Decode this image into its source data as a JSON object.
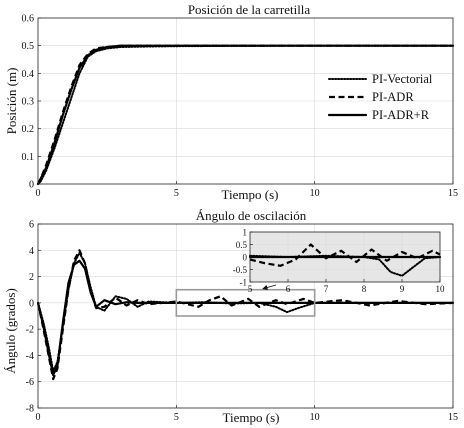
{
  "chart_data": [
    {
      "id": "top",
      "type": "line",
      "title": "Posición de la carretilla",
      "xlabel": "Tiempo (s)",
      "ylabel": "Posición (m)",
      "xlim": [
        0,
        15
      ],
      "ylim": [
        0,
        0.6
      ],
      "xticks": [
        0,
        5,
        10,
        15
      ],
      "yticks": [
        0,
        0.1,
        0.2,
        0.3,
        0.4,
        0.5,
        0.6
      ],
      "ytick_labels": [
        "0",
        "0.1",
        "0.2",
        "0.3",
        "0.4",
        "0.5",
        "0.6"
      ],
      "grid": true,
      "legend": {
        "placement": "right",
        "entries": [
          "PI-Vectorial",
          "PI-ADR",
          "PI-ADR+R"
        ]
      },
      "series": [
        {
          "name": "PI-Vectorial",
          "style": "dotted",
          "x": [
            0,
            0.1,
            0.3,
            0.6,
            0.9,
            1.2,
            1.5,
            1.8,
            2.1,
            2.5,
            3.0,
            4.0,
            5.0,
            7.0,
            10.0,
            15.0
          ],
          "y": [
            0,
            0.01,
            0.05,
            0.13,
            0.22,
            0.31,
            0.4,
            0.46,
            0.48,
            0.49,
            0.495,
            0.497,
            0.498,
            0.499,
            0.5,
            0.5
          ]
        },
        {
          "name": "PI-ADR",
          "style": "dashed",
          "x": [
            0,
            0.1,
            0.3,
            0.6,
            0.9,
            1.2,
            1.5,
            1.8,
            2.1,
            2.5,
            3.0,
            4.0,
            5.0,
            7.0,
            10.0,
            15.0
          ],
          "y": [
            0,
            0.02,
            0.07,
            0.16,
            0.26,
            0.35,
            0.43,
            0.47,
            0.49,
            0.495,
            0.5,
            0.5,
            0.5,
            0.5,
            0.5,
            0.5
          ]
        },
        {
          "name": "PI-ADR+R",
          "style": "solid",
          "x": [
            0,
            0.1,
            0.3,
            0.6,
            0.9,
            1.2,
            1.5,
            1.8,
            2.1,
            2.5,
            3.0,
            4.0,
            5.0,
            7.0,
            10.0,
            15.0
          ],
          "y": [
            0,
            0.02,
            0.06,
            0.15,
            0.25,
            0.34,
            0.42,
            0.465,
            0.485,
            0.495,
            0.5,
            0.5,
            0.5,
            0.5,
            0.5,
            0.5
          ]
        }
      ]
    },
    {
      "id": "bottom",
      "type": "line",
      "title": "Ángulo de oscilación",
      "xlabel": "Tiempo (s)",
      "ylabel": "Ángulo (grados)",
      "xlim": [
        0,
        15
      ],
      "ylim": [
        -8,
        6
      ],
      "xticks": [
        0,
        5,
        10,
        15
      ],
      "yticks": [
        -8,
        -6,
        -4,
        -2,
        0,
        2,
        4,
        6
      ],
      "grid": true,
      "series": [
        {
          "name": "PI-Vectorial",
          "style": "dotted",
          "x": [
            0,
            0.2,
            0.4,
            0.55,
            0.7,
            0.9,
            1.1,
            1.3,
            1.5,
            1.7,
            1.9,
            2.1,
            2.4,
            2.8,
            3.2,
            3.6,
            4.0,
            5.0,
            6.0,
            7.0,
            8.0,
            8.6,
            9.0,
            9.4,
            10.0,
            12.0,
            15.0
          ],
          "y": [
            0,
            -1.5,
            -3.5,
            -5.2,
            -4.5,
            -1.8,
            1.0,
            3.0,
            3.8,
            3.0,
            1.2,
            -0.3,
            -0.6,
            0.5,
            0.3,
            -0.3,
            0.1,
            0.0,
            0.05,
            -0.05,
            0.0,
            -0.3,
            -0.7,
            -0.4,
            0.0,
            0.0,
            0.0
          ]
        },
        {
          "name": "PI-ADR",
          "style": "dashed",
          "x": [
            0,
            0.2,
            0.4,
            0.55,
            0.7,
            0.9,
            1.1,
            1.3,
            1.5,
            1.7,
            1.9,
            2.1,
            2.4,
            2.8,
            3.2,
            3.6,
            4.0,
            5.0,
            5.8,
            6.2,
            6.6,
            7.0,
            7.6,
            8.0,
            8.6,
            9.0,
            9.6,
            10.0,
            11.0,
            12.0,
            13.0,
            14.0,
            15.0
          ],
          "y": [
            0,
            -2.0,
            -4.2,
            -5.8,
            -5.0,
            -2.0,
            1.0,
            3.2,
            4.0,
            3.0,
            1.0,
            -0.4,
            -0.3,
            0.4,
            -0.2,
            0.2,
            -0.1,
            0.1,
            -0.3,
            0.2,
            0.5,
            -0.2,
            0.3,
            -0.3,
            0.2,
            -0.1,
            0.3,
            0.0,
            0.2,
            -0.2,
            0.15,
            -0.1,
            0.0
          ]
        },
        {
          "name": "PI-ADR+R",
          "style": "solid",
          "x": [
            0,
            0.2,
            0.4,
            0.55,
            0.7,
            0.9,
            1.1,
            1.3,
            1.5,
            1.7,
            1.9,
            2.1,
            2.4,
            2.8,
            3.2,
            3.6,
            4.0,
            5.0,
            7.0,
            10.0,
            15.0
          ],
          "y": [
            0,
            -1.8,
            -4.0,
            -5.5,
            -4.8,
            -1.5,
            1.5,
            2.9,
            3.2,
            2.6,
            0.8,
            -0.3,
            0.2,
            -0.1,
            0.05,
            0.0,
            0.0,
            0.0,
            0.0,
            0.0,
            0.0
          ]
        }
      ]
    },
    {
      "id": "inset",
      "type": "line",
      "xlim": [
        5,
        10
      ],
      "ylim": [
        -1,
        1
      ],
      "xticks": [
        5,
        6,
        7,
        8,
        9,
        10
      ],
      "yticks": [
        -1,
        -0.5,
        0,
        0.5,
        1
      ],
      "ytick_labels": [
        "-1",
        "-0.5",
        "0",
        "0.5",
        "1"
      ],
      "grid": true,
      "zoom_region": {
        "x": [
          5,
          10
        ],
        "y": [
          -1,
          1
        ]
      },
      "series": [
        {
          "name": "PI-Vectorial",
          "style": "dotted",
          "x": [
            5,
            6,
            7,
            8,
            8.4,
            8.7,
            9.0,
            9.3,
            9.6,
            10
          ],
          "y": [
            0.05,
            0.0,
            0.05,
            0.0,
            -0.1,
            -0.6,
            -0.75,
            -0.4,
            -0.05,
            0.0
          ]
        },
        {
          "name": "PI-ADR",
          "style": "dashed",
          "x": [
            5,
            5.4,
            5.8,
            6.2,
            6.6,
            7.0,
            7.4,
            7.8,
            8.2,
            8.6,
            9.0,
            9.4,
            9.8,
            10
          ],
          "y": [
            -0.1,
            -0.25,
            -0.35,
            -0.1,
            0.5,
            -0.05,
            0.25,
            -0.2,
            0.3,
            -0.15,
            0.2,
            -0.05,
            0.25,
            0.1
          ]
        },
        {
          "name": "PI-ADR+R",
          "style": "solid",
          "x": [
            5,
            6,
            7,
            8,
            9,
            10
          ],
          "y": [
            0.0,
            0.0,
            0.0,
            0.0,
            0.0,
            0.0
          ]
        }
      ]
    }
  ]
}
